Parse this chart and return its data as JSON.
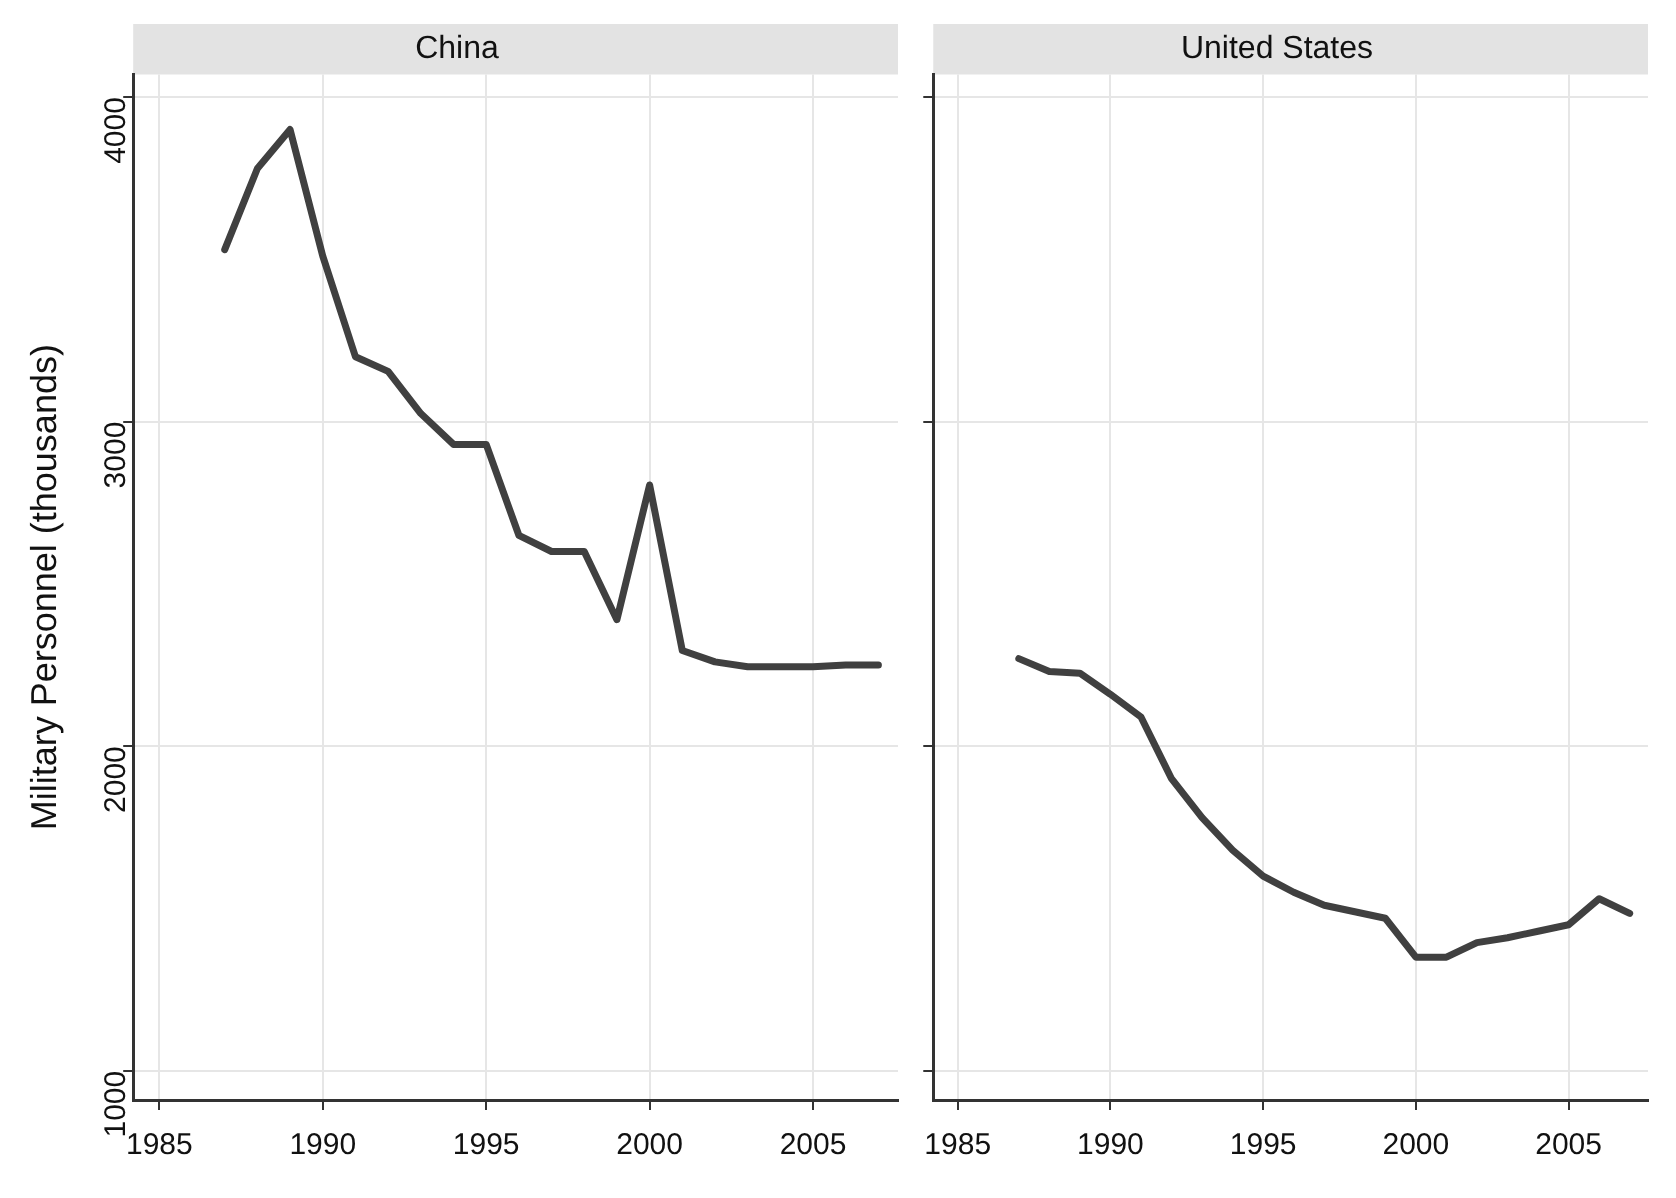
{
  "chart_data": [
    {
      "type": "line",
      "title": "China",
      "ylabel": "Military Personnel (thousands)",
      "x": [
        1987,
        1988,
        1989,
        1990,
        1991,
        1992,
        1993,
        1994,
        1995,
        1996,
        1997,
        1998,
        1999,
        2000,
        2001,
        2002,
        2003,
        2004,
        2005,
        2006,
        2007
      ],
      "xlim": [
        1984.2,
        2007.6
      ],
      "xticks": [
        1985,
        1990,
        1995,
        2000,
        2005
      ],
      "ylim": [
        910,
        4070
      ],
      "yticks": [
        1000,
        2000,
        3000,
        4000
      ],
      "grid": true,
      "series": [
        {
          "color": "#404040",
          "values": [
            3530,
            3780,
            3900,
            3510,
            3200,
            3155,
            3025,
            2930,
            2930,
            2650,
            2600,
            2600,
            2390,
            2805,
            2295,
            2260,
            2245,
            2245,
            2245,
            2250,
            2250
          ]
        }
      ]
    },
    {
      "type": "line",
      "title": "United States",
      "x": [
        1987,
        1988,
        1989,
        1990,
        1991,
        1992,
        1993,
        1994,
        1995,
        1996,
        1997,
        1998,
        1999,
        2000,
        2001,
        2002,
        2003,
        2004,
        2005,
        2006,
        2007
      ],
      "xlim": [
        1984.2,
        2007.6
      ],
      "xticks": [
        1985,
        1990,
        1995,
        2000,
        2005
      ],
      "ylim": [
        910,
        4070
      ],
      "yticks": [
        1000,
        2000,
        3000,
        4000
      ],
      "grid": true,
      "tick_labels": "x",
      "series": [
        {
          "color": "#404040",
          "values": [
            2270,
            2230,
            2225,
            2160,
            2090,
            1900,
            1780,
            1680,
            1600,
            1550,
            1510,
            1490,
            1470,
            1350,
            1350,
            1395,
            1410,
            1430,
            1450,
            1530,
            1485
          ]
        }
      ]
    }
  ]
}
